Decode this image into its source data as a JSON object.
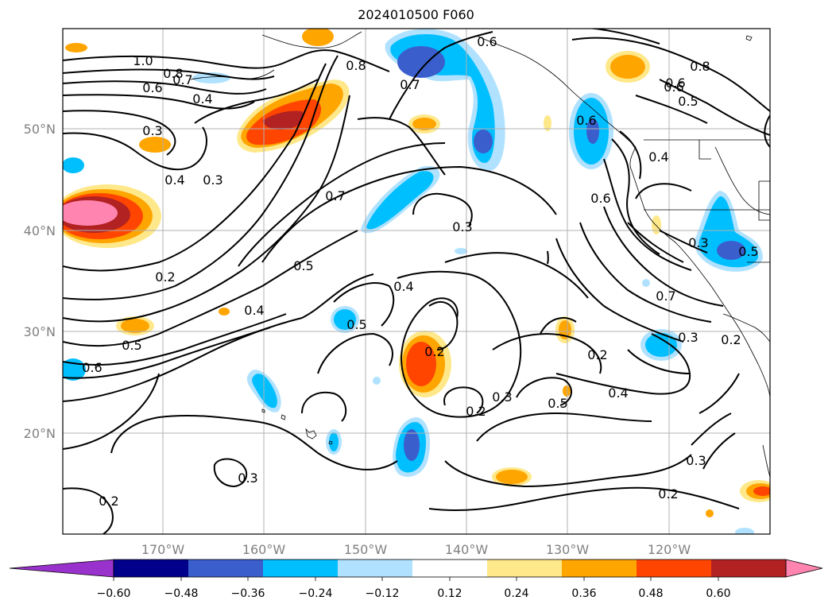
{
  "title": "2024010500 F060",
  "axes": {
    "longitude_labels": [
      "170°W",
      "160°W",
      "150°W",
      "140°W",
      "130°W",
      "120°W"
    ],
    "latitude_labels": [
      "50°N",
      "40°N",
      "30°N",
      "20°N"
    ],
    "gridlines": true
  },
  "contour_labels": [
    "1.0",
    "0.8",
    "0.7",
    "0.6",
    "0.4",
    "0.3",
    "0.4",
    "0.3",
    "0.2",
    "0.5",
    "0.4",
    "0.5",
    "0.6",
    "0.8",
    "0.7",
    "0.7",
    "0.6",
    "0.3",
    "0.4",
    "0.5",
    "0.2",
    "0.2",
    "0.3",
    "0.2",
    "0.5",
    "0.4",
    "0.6",
    "0.6",
    "0.8",
    "0.6",
    "0.5",
    "0.4",
    "0.6",
    "0.3",
    "0.5",
    "0.7",
    "0.3",
    "0.2",
    "0.2",
    "0.3",
    "0.3",
    "0.2"
  ],
  "colorbar": {
    "ticks": [
      "−0.60",
      "−0.48",
      "−0.36",
      "−0.24",
      "−0.12",
      "0.12",
      "0.24",
      "0.36",
      "0.48",
      "0.60"
    ],
    "colors": [
      "#9932cc",
      "#00008b",
      "#3a5fcd",
      "#00bfff",
      "#b0e2ff",
      "#ffffff",
      "#ffe88a",
      "#ffa500",
      "#ff4500",
      "#b22222",
      "#ff85b0"
    ]
  },
  "shading_colors": {
    "pos1": "#ffe88a",
    "pos2": "#ffa500",
    "pos3": "#ff4500",
    "pos4": "#b22222",
    "pos5": "#ff85b0",
    "neg1": "#b0e2ff",
    "neg2": "#00bfff",
    "neg3": "#3a5fcd"
  }
}
